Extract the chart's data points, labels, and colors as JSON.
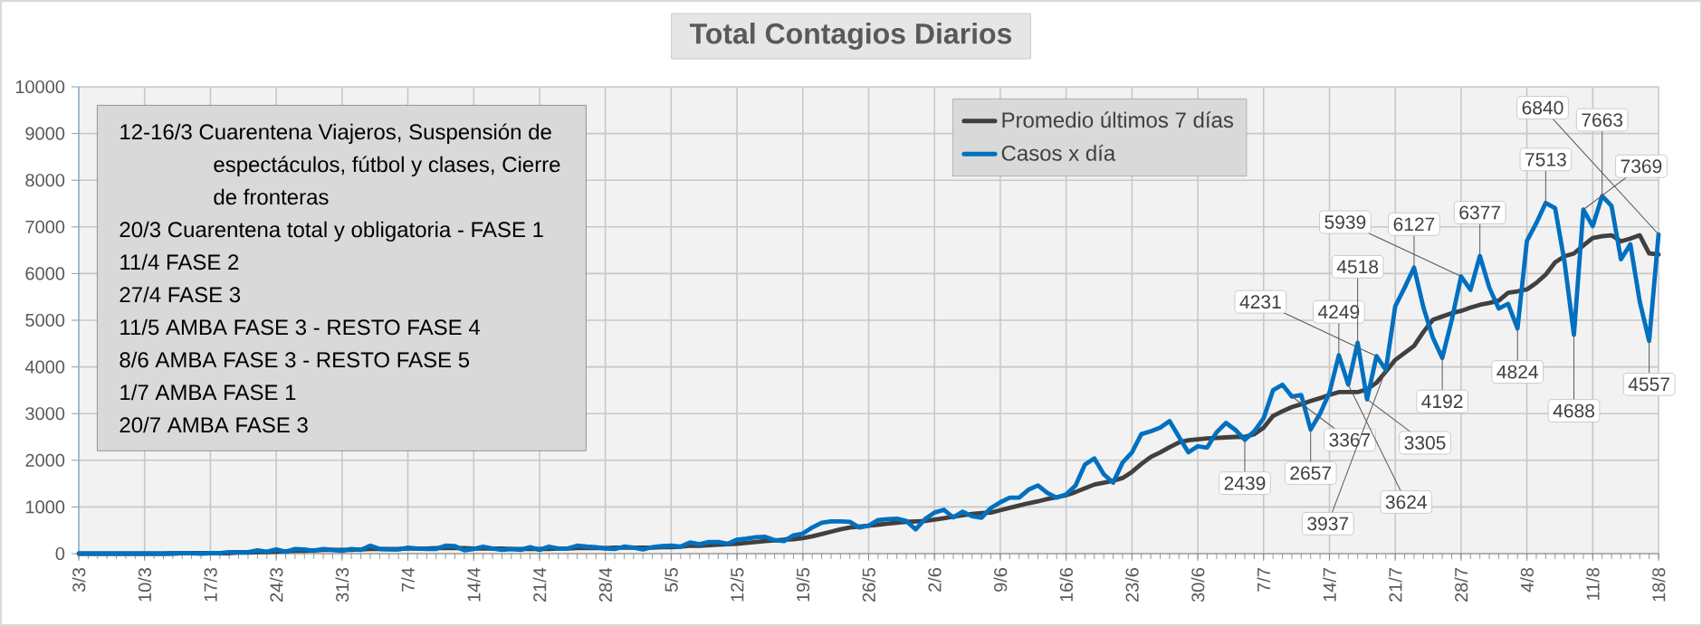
{
  "chart_data": {
    "type": "line",
    "title": "Total Contagios Diarios",
    "categories": [
      "3/3",
      null,
      null,
      null,
      null,
      null,
      null,
      "10/3",
      null,
      null,
      null,
      null,
      null,
      null,
      "17/3",
      null,
      null,
      null,
      null,
      null,
      null,
      "24/3",
      null,
      null,
      null,
      null,
      null,
      null,
      "31/3",
      null,
      null,
      null,
      null,
      null,
      null,
      "7/4",
      null,
      null,
      null,
      null,
      null,
      null,
      "14/4",
      null,
      null,
      null,
      null,
      null,
      null,
      "21/4",
      null,
      null,
      null,
      null,
      null,
      null,
      "28/4",
      null,
      null,
      null,
      null,
      null,
      null,
      "5/5",
      null,
      null,
      null,
      null,
      null,
      null,
      "12/5",
      null,
      null,
      null,
      null,
      null,
      null,
      "19/5",
      null,
      null,
      null,
      null,
      null,
      null,
      "26/5",
      null,
      null,
      null,
      null,
      null,
      null,
      "2/6",
      null,
      null,
      null,
      null,
      null,
      null,
      "9/6",
      null,
      null,
      null,
      null,
      null,
      null,
      "16/6",
      null,
      null,
      null,
      null,
      null,
      null,
      "23/6",
      null,
      null,
      null,
      null,
      null,
      null,
      "30/6",
      null,
      null,
      null,
      null,
      null,
      null,
      "7/7",
      null,
      null,
      null,
      null,
      null,
      null,
      "14/7",
      null,
      null,
      null,
      null,
      null,
      null,
      "21/7",
      null,
      null,
      null,
      null,
      null,
      null,
      "28/7",
      null,
      null,
      null,
      null,
      null,
      null,
      "4/8",
      null,
      null,
      null,
      null,
      null,
      null,
      "11/8",
      null,
      null,
      null,
      null,
      null,
      null,
      "18/8"
    ],
    "series": [
      {
        "name": "Promedio últimos 7 días",
        "color": "#404040",
        "values": [
          0,
          0,
          0,
          0,
          0,
          0,
          0,
          0,
          0,
          0,
          0,
          10,
          10,
          10,
          10,
          10,
          10,
          20,
          20,
          30,
          30,
          40,
          50,
          60,
          60,
          70,
          80,
          80,
          80,
          80,
          90,
          100,
          100,
          100,
          100,
          110,
          110,
          110,
          120,
          120,
          120,
          120,
          110,
          110,
          110,
          110,
          100,
          100,
          100,
          100,
          100,
          110,
          110,
          120,
          120,
          120,
          120,
          130,
          130,
          130,
          130,
          130,
          140,
          140,
          150,
          170,
          170,
          180,
          190,
          200,
          210,
          230,
          250,
          270,
          285,
          300,
          310,
          330,
          370,
          420,
          470,
          520,
          560,
          580,
          600,
          620,
          640,
          660,
          680,
          690,
          700,
          730,
          760,
          790,
          820,
          850,
          870,
          880,
          930,
          980,
          1030,
          1080,
          1120,
          1170,
          1210,
          1250,
          1320,
          1400,
          1480,
          1520,
          1560,
          1620,
          1750,
          1920,
          2070,
          2170,
          2280,
          2380,
          2430,
          2450,
          2470,
          2480,
          2490,
          2500,
          2500,
          2560,
          2700,
          2950,
          3050,
          3140,
          3200,
          3270,
          3330,
          3400,
          3460,
          3460,
          3460,
          3520,
          3660,
          3900,
          4150,
          4300,
          4450,
          4750,
          5010,
          5080,
          5150,
          5200,
          5270,
          5330,
          5370,
          5420,
          5590,
          5620,
          5660,
          5800,
          5980,
          6240,
          6370,
          6430,
          6600,
          6760,
          6800,
          6820,
          6690,
          6750,
          6820,
          6430,
          6410
        ]
      },
      {
        "name": "Casos x día",
        "color": "#0070c0",
        "values": [
          0,
          0,
          0,
          0,
          0,
          0,
          0,
          0,
          0,
          0,
          10,
          10,
          10,
          0,
          10,
          10,
          30,
          30,
          30,
          70,
          40,
          90,
          40,
          100,
          90,
          60,
          100,
          80,
          60,
          100,
          80,
          170,
          100,
          90,
          90,
          130,
          110,
          100,
          100,
          170,
          160,
          70,
          100,
          150,
          110,
          80,
          100,
          80,
          140,
          80,
          150,
          110,
          110,
          170,
          150,
          140,
          110,
          100,
          150,
          130,
          90,
          140,
          160,
          170,
          150,
          240,
          200,
          250,
          250,
          210,
          300,
          320,
          350,
          360,
          290,
          270,
          390,
          430,
          560,
          660,
          690,
          690,
          680,
          560,
          600,
          720,
          740,
          750,
          700,
          520,
          740,
          880,
          940,
          775,
          900,
          800,
          770,
          980,
          1100,
          1200,
          1200,
          1370,
          1460,
          1300,
          1200,
          1270,
          1460,
          1910,
          2040,
          1700,
          1520,
          1950,
          2170,
          2560,
          2620,
          2700,
          2840,
          2500,
          2170,
          2300,
          2270,
          2600,
          2800,
          2650,
          2439,
          2620,
          2900,
          3500,
          3620,
          3367,
          3400,
          2657,
          3000,
          3450,
          4249,
          3624,
          4518,
          3305,
          4231,
          3937,
          5300,
          5700,
          6127,
          5270,
          4625,
          4192,
          5000,
          5939,
          5650,
          6377,
          5700,
          5250,
          5350,
          4824,
          6700,
          7080,
          7513,
          7400,
          6250,
          4688,
          7369,
          7015,
          7663,
          7450,
          6305,
          6628,
          5400,
          4557,
          6840
        ],
        "value_labels": [
          null,
          null,
          null,
          null,
          null,
          null,
          null,
          null,
          null,
          null,
          null,
          null,
          null,
          null,
          null,
          null,
          null,
          null,
          null,
          null,
          null,
          null,
          null,
          null,
          null,
          null,
          null,
          null,
          null,
          null,
          null,
          null,
          null,
          null,
          null,
          null,
          null,
          null,
          null,
          null,
          null,
          null,
          null,
          null,
          null,
          null,
          null,
          null,
          null,
          null,
          null,
          null,
          null,
          null,
          null,
          null,
          null,
          null,
          null,
          null,
          null,
          null,
          null,
          null,
          null,
          null,
          null,
          null,
          null,
          null,
          null,
          null,
          null,
          null,
          null,
          null,
          null,
          null,
          null,
          null,
          null,
          null,
          null,
          null,
          null,
          null,
          null,
          null,
          null,
          null,
          null,
          null,
          null,
          null,
          null,
          null,
          null,
          null,
          null,
          null,
          null,
          null,
          null,
          null,
          null,
          null,
          null,
          null,
          null,
          null,
          null,
          null,
          null,
          null,
          null,
          null,
          null,
          null,
          null,
          null,
          null,
          null,
          null,
          null,
          "2439",
          null,
          null,
          null,
          null,
          "3367",
          null,
          "2657",
          null,
          null,
          "4249",
          "3624",
          "4518",
          "3305",
          "4231",
          "3937",
          null,
          null,
          "6127",
          null,
          null,
          "4192",
          null,
          "5939",
          null,
          "6377",
          null,
          null,
          null,
          "4824",
          null,
          null,
          "7513",
          null,
          null,
          "4688",
          "7369",
          null,
          "7663",
          null,
          null,
          null,
          null,
          "4557",
          "6840"
        ]
      }
    ],
    "ylim": [
      0,
      10000
    ],
    "yticks": [
      0,
      1000,
      2000,
      3000,
      4000,
      5000,
      6000,
      7000,
      8000,
      9000,
      10000
    ],
    "grid": true,
    "legend": "top",
    "annotations": [
      "12-16/3  Cuarentena Viajeros, Suspensión de espectáculos, fútbol y clases, Cierre de fronteras",
      "20/3 Cuarentena total y obligatoria - FASE 1",
      "11/4 FASE 2",
      "27/4 FASE 3",
      "11/5 AMBA FASE 3 - RESTO FASE 4",
      "8/6 AMBA FASE 3 - RESTO FASE 5",
      "1/7 AMBA FASE 1",
      "20/7 AMBA FASE 3"
    ]
  }
}
